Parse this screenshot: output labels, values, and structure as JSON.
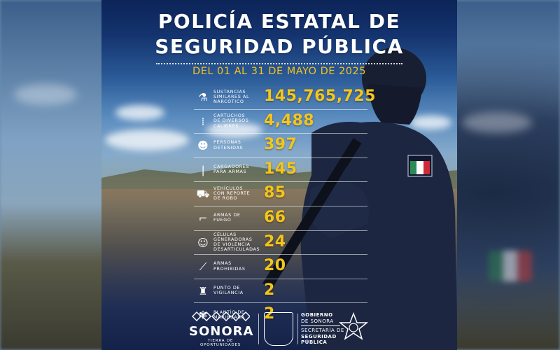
{
  "header": {
    "title_line1": "POLICÍA ESTATAL DE",
    "title_line2": "SEGURIDAD PÚBLICA",
    "period": "DEL 01 AL 31 DE MAYO DE 2025"
  },
  "stats": [
    {
      "icon": "drugs-icon",
      "label": "SUSTANCIAS\nSIMILARES AL\nNARCÓTICO",
      "value": "145,765,725"
    },
    {
      "icon": "ammunition-icon",
      "label": "CARTUCHOS\nDE DIVERSOS\nCALIBRES",
      "value": "4,488"
    },
    {
      "icon": "people-icon",
      "label": "PERSONAS\nDETENIDAS",
      "value": "397"
    },
    {
      "icon": "magazine-icon",
      "label": "CARGADORES\nPARA ARMAS",
      "value": "145"
    },
    {
      "icon": "car-icon",
      "label": "VEHÍCULOS\nCON REPORTE\nDE ROBO",
      "value": "85"
    },
    {
      "icon": "handgun-icon",
      "label": "ARMAS DE\nFUEGO",
      "value": "66"
    },
    {
      "icon": "group-icon",
      "label": "CÉLULAS\nGENERADORAS\nDE VIOLENCIA\nDESARTICULADAS",
      "value": "24"
    },
    {
      "icon": "knife-icon",
      "label": "ARMAS\nPROHIBIDAS",
      "value": "20"
    },
    {
      "icon": "checkpoint-icon",
      "label": "PUNTO DE\nVIGILANCIA",
      "value": "2"
    },
    {
      "icon": "cannabis-leaf-icon",
      "label": "PLANTÍO DE\nMARIHUANA",
      "value": "2"
    }
  ],
  "footer": {
    "sonora_word": "SONORA",
    "sonora_tagline": "TIERRA DE OPORTUNIDADES",
    "gov_line1": "GOBIERNO",
    "gov_line2": "DE SONORA",
    "sec_line1": "SECRETARÍA DE",
    "sec_line2": "SEGURIDAD",
    "sec_line3": "PÚBLICA"
  },
  "colors": {
    "accent_yellow": "#f5c518",
    "navy": "#142147",
    "text": "#ffffff"
  }
}
